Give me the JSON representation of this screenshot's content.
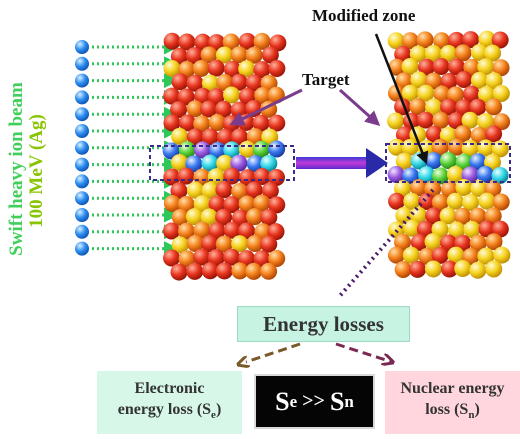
{
  "labels": {
    "beam_line1": "Swift heavy ion beam",
    "beam_line2": "100 MeV (Ag)",
    "modified_zone": "Modified zone",
    "target": "Target",
    "energy_losses": "Energy losses",
    "electronic_line1": "Electronic",
    "electronic_line2": "energy loss (S",
    "electronic_sub": "e",
    "electronic_close": ")",
    "ratio_left": "S",
    "ratio_left_sub": "e",
    "ratio_op": " >> ",
    "ratio_right": "S",
    "ratio_right_sub": "n",
    "nuclear_line1": "Nuclear energy",
    "nuclear_line2": "loss (S",
    "nuclear_sub": "n",
    "nuclear_close": ")"
  },
  "colors": {
    "ion": "#2f8ff0",
    "beam_arrow": "#2ec85a",
    "target_red": "#e8341e",
    "target_orange": "#f4801a",
    "target_yellow": "#f6d21c",
    "track_box": "#3a2a8a",
    "connector_arrow": "#7a3c8c",
    "dotted_link": "#4a1a6a",
    "branch_left": "#7a5a2a",
    "branch_right": "#7a2a50"
  }
}
